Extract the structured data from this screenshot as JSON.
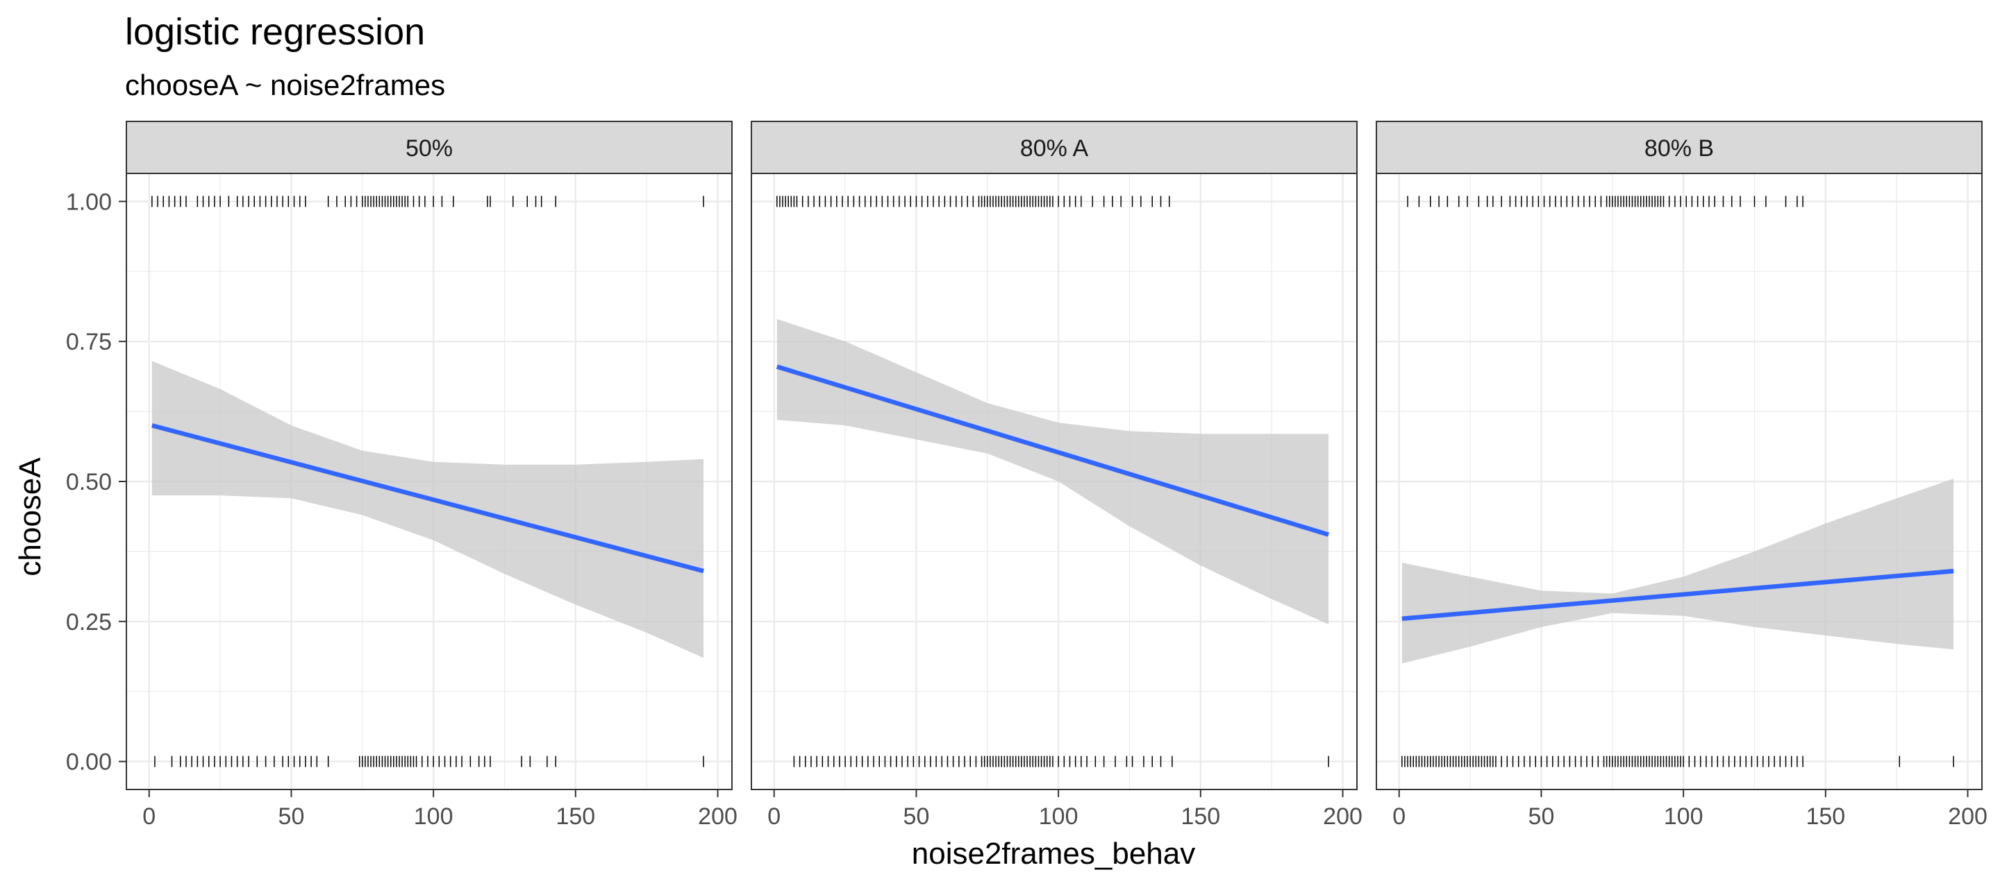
{
  "chart_data": {
    "type": "line",
    "title": "logistic regression",
    "subtitle": "chooseA ~ noise2frames",
    "xlabel": "noise2frames_behav",
    "ylabel": "chooseA",
    "xlim": [
      -8,
      205
    ],
    "ylim": [
      -0.05,
      1.05
    ],
    "x_ticks": [
      0,
      50,
      100,
      150,
      200
    ],
    "x_tick_labels": [
      "0",
      "50",
      "100",
      "150",
      "200"
    ],
    "y_ticks": [
      0,
      0.25,
      0.5,
      0.75,
      1.0
    ],
    "y_tick_labels": [
      "0.00",
      "0.25",
      "0.50",
      "0.75",
      "1.00"
    ],
    "grid": true,
    "colors": {
      "fit_line": "#3366ff",
      "ribbon": "#c8c8c8",
      "strip_bg": "#d9d9d9",
      "panel_border": "#333333",
      "grid": "#ebebeb",
      "rug": "#000000"
    },
    "panels": [
      {
        "label": "50%",
        "fit": {
          "x": [
            1,
            195
          ],
          "y": [
            0.6,
            0.34
          ]
        },
        "ci": {
          "x": [
            1,
            25,
            50,
            75,
            100,
            125,
            150,
            175,
            195
          ],
          "upper": [
            0.715,
            0.665,
            0.6,
            0.555,
            0.535,
            0.53,
            0.53,
            0.535,
            0.54
          ],
          "lower": [
            0.475,
            0.475,
            0.47,
            0.44,
            0.395,
            0.335,
            0.28,
            0.23,
            0.185
          ]
        },
        "rug_top": [
          1,
          3,
          5,
          7,
          9,
          11,
          13,
          17,
          19,
          21,
          23,
          25,
          28,
          31,
          33,
          35,
          37,
          39,
          41,
          43,
          45,
          47,
          49,
          51,
          53,
          55,
          63,
          66,
          69,
          71,
          73,
          75,
          76,
          77,
          78,
          79,
          80,
          81,
          82,
          83,
          84,
          85,
          86,
          87,
          88,
          89,
          90,
          91,
          93,
          95,
          97,
          100,
          103,
          107,
          119,
          120,
          128,
          133,
          136,
          138,
          143,
          195
        ],
        "rug_bottom": [
          2,
          8,
          11,
          13,
          15,
          17,
          19,
          21,
          23,
          25,
          27,
          29,
          31,
          33,
          35,
          38,
          41,
          44,
          47,
          49,
          51,
          53,
          55,
          57,
          59,
          63,
          74,
          75,
          76,
          77,
          78,
          79,
          80,
          81,
          82,
          83,
          84,
          85,
          86,
          87,
          88,
          89,
          90,
          91,
          92,
          93,
          94,
          96,
          98,
          100,
          102,
          104,
          106,
          108,
          110,
          113,
          116,
          118,
          120,
          131,
          134,
          140,
          143,
          195
        ]
      },
      {
        "label": "80% A",
        "fit": {
          "x": [
            1,
            195
          ],
          "y": [
            0.705,
            0.405
          ]
        },
        "ci": {
          "x": [
            1,
            25,
            50,
            75,
            100,
            125,
            150,
            175,
            195
          ],
          "upper": [
            0.79,
            0.75,
            0.695,
            0.64,
            0.605,
            0.59,
            0.585,
            0.585,
            0.585
          ],
          "lower": [
            0.61,
            0.6,
            0.575,
            0.55,
            0.5,
            0.42,
            0.35,
            0.29,
            0.245
          ]
        },
        "rug_top": [
          1,
          2,
          3,
          4,
          5,
          6,
          7,
          8,
          10,
          12,
          14,
          16,
          18,
          20,
          22,
          24,
          26,
          28,
          30,
          32,
          34,
          36,
          38,
          40,
          42,
          44,
          46,
          48,
          50,
          52,
          54,
          56,
          58,
          60,
          62,
          64,
          66,
          68,
          70,
          72,
          73,
          74,
          75,
          76,
          77,
          78,
          79,
          80,
          81,
          82,
          83,
          84,
          85,
          86,
          87,
          88,
          89,
          90,
          91,
          92,
          93,
          94,
          95,
          96,
          97,
          98,
          100,
          102,
          104,
          106,
          108,
          112,
          116,
          119,
          122,
          126,
          129,
          133,
          136,
          139
        ],
        "rug_bottom": [
          7,
          9,
          11,
          13,
          15,
          17,
          19,
          21,
          23,
          25,
          27,
          29,
          31,
          33,
          35,
          37,
          39,
          41,
          43,
          45,
          47,
          49,
          51,
          53,
          55,
          57,
          59,
          61,
          63,
          65,
          67,
          69,
          71,
          73,
          74,
          75,
          76,
          77,
          78,
          79,
          80,
          81,
          82,
          83,
          84,
          85,
          86,
          87,
          88,
          89,
          90,
          91,
          92,
          93,
          94,
          95,
          96,
          97,
          98,
          100,
          102,
          104,
          106,
          108,
          110,
          113,
          116,
          120,
          124,
          126,
          130,
          133,
          136,
          140,
          195
        ]
      },
      {
        "label": "80% B",
        "fit": {
          "x": [
            1,
            195
          ],
          "y": [
            0.255,
            0.34
          ]
        },
        "ci": {
          "x": [
            1,
            25,
            50,
            75,
            100,
            125,
            150,
            175,
            195
          ],
          "upper": [
            0.355,
            0.33,
            0.305,
            0.3,
            0.33,
            0.375,
            0.425,
            0.47,
            0.505
          ],
          "lower": [
            0.175,
            0.205,
            0.24,
            0.265,
            0.26,
            0.24,
            0.225,
            0.21,
            0.2
          ]
        },
        "rug_top": [
          3,
          7,
          11,
          14,
          17,
          21,
          24,
          28,
          31,
          33,
          36,
          39,
          41,
          43,
          45,
          47,
          49,
          51,
          53,
          55,
          57,
          59,
          61,
          63,
          65,
          67,
          69,
          71,
          73,
          74,
          75,
          76,
          77,
          78,
          79,
          80,
          81,
          82,
          83,
          84,
          85,
          86,
          87,
          88,
          89,
          90,
          91,
          92,
          93,
          95,
          97,
          99,
          101,
          103,
          105,
          107,
          109,
          111,
          114,
          117,
          120,
          125,
          129,
          136,
          140,
          142
        ],
        "rug_bottom": [
          1,
          2,
          3,
          4,
          5,
          6,
          7,
          8,
          9,
          10,
          11,
          12,
          13,
          14,
          15,
          16,
          17,
          18,
          19,
          20,
          21,
          22,
          23,
          24,
          25,
          26,
          27,
          28,
          29,
          30,
          31,
          32,
          33,
          34,
          36,
          38,
          40,
          42,
          44,
          46,
          48,
          50,
          52,
          54,
          56,
          58,
          60,
          62,
          64,
          66,
          68,
          70,
          72,
          73,
          74,
          75,
          76,
          77,
          78,
          79,
          80,
          81,
          82,
          83,
          84,
          85,
          86,
          87,
          88,
          89,
          90,
          91,
          92,
          93,
          94,
          95,
          96,
          97,
          98,
          99,
          100,
          102,
          104,
          106,
          108,
          110,
          112,
          114,
          116,
          118,
          120,
          122,
          124,
          126,
          128,
          130,
          132,
          134,
          136,
          138,
          140,
          142,
          176,
          195
        ]
      }
    ]
  }
}
